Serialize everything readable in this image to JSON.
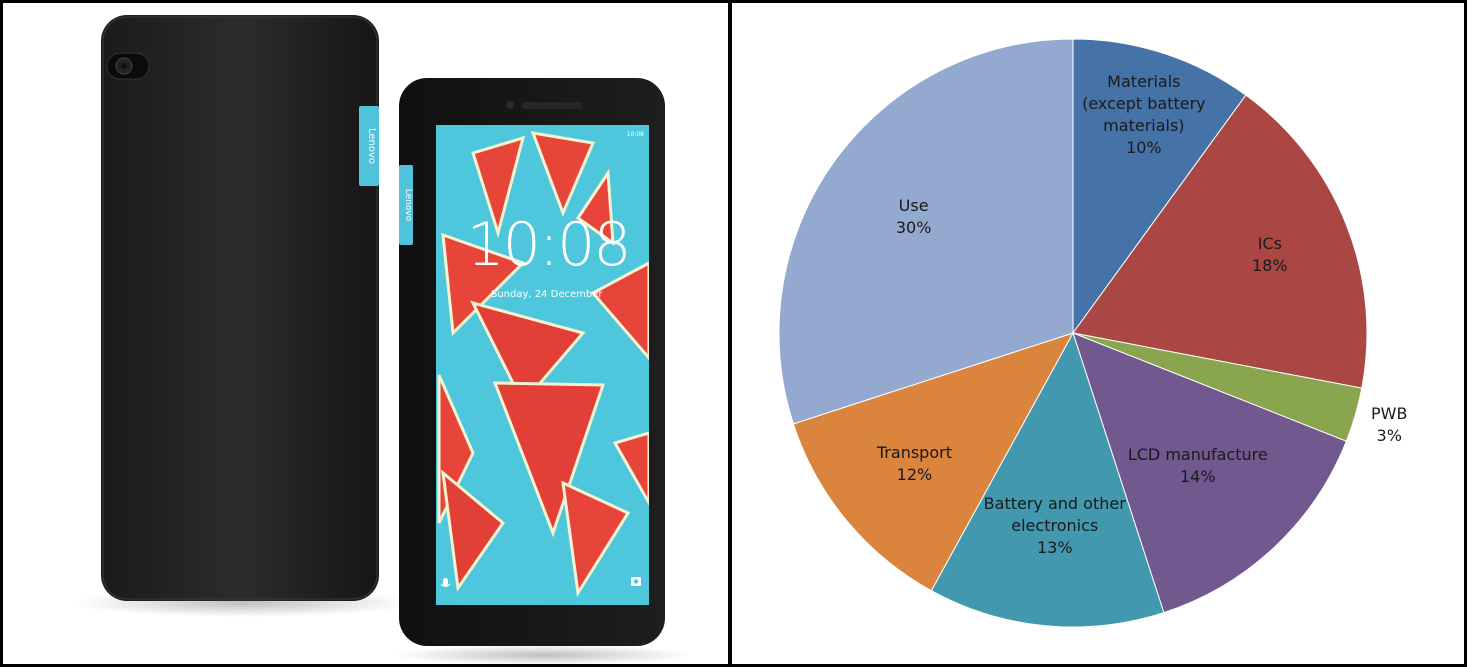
{
  "photo": {
    "back_brand": "Lenovo",
    "front_brand": "Lenovo",
    "lock_time": "10:08",
    "lock_date": "Sunday, 24 December",
    "status_time": "10:08"
  },
  "chart_data": {
    "type": "pie",
    "title": "",
    "slices": [
      {
        "label": "Materials\n(except battery\nmaterials)",
        "value": 10,
        "pct_label": "10%",
        "color": "#4573a7"
      },
      {
        "label": "ICs",
        "value": 18,
        "pct_label": "18%",
        "color": "#aa4643"
      },
      {
        "label": "PWB",
        "value": 3,
        "pct_label": "3%",
        "color": "#89a54e"
      },
      {
        "label": "LCD manufacture",
        "value": 14,
        "pct_label": "14%",
        "color": "#71588f"
      },
      {
        "label": "Battery and other\nelectronics",
        "value": 13,
        "pct_label": "13%",
        "color": "#4198af"
      },
      {
        "label": "Transport",
        "value": 12,
        "pct_label": "12%",
        "color": "#db843d"
      },
      {
        "label": "Use",
        "value": 30,
        "pct_label": "30%",
        "color": "#93a9cf"
      }
    ],
    "start_angle": "12 o'clock",
    "direction": "clockwise",
    "labels": "inside"
  }
}
